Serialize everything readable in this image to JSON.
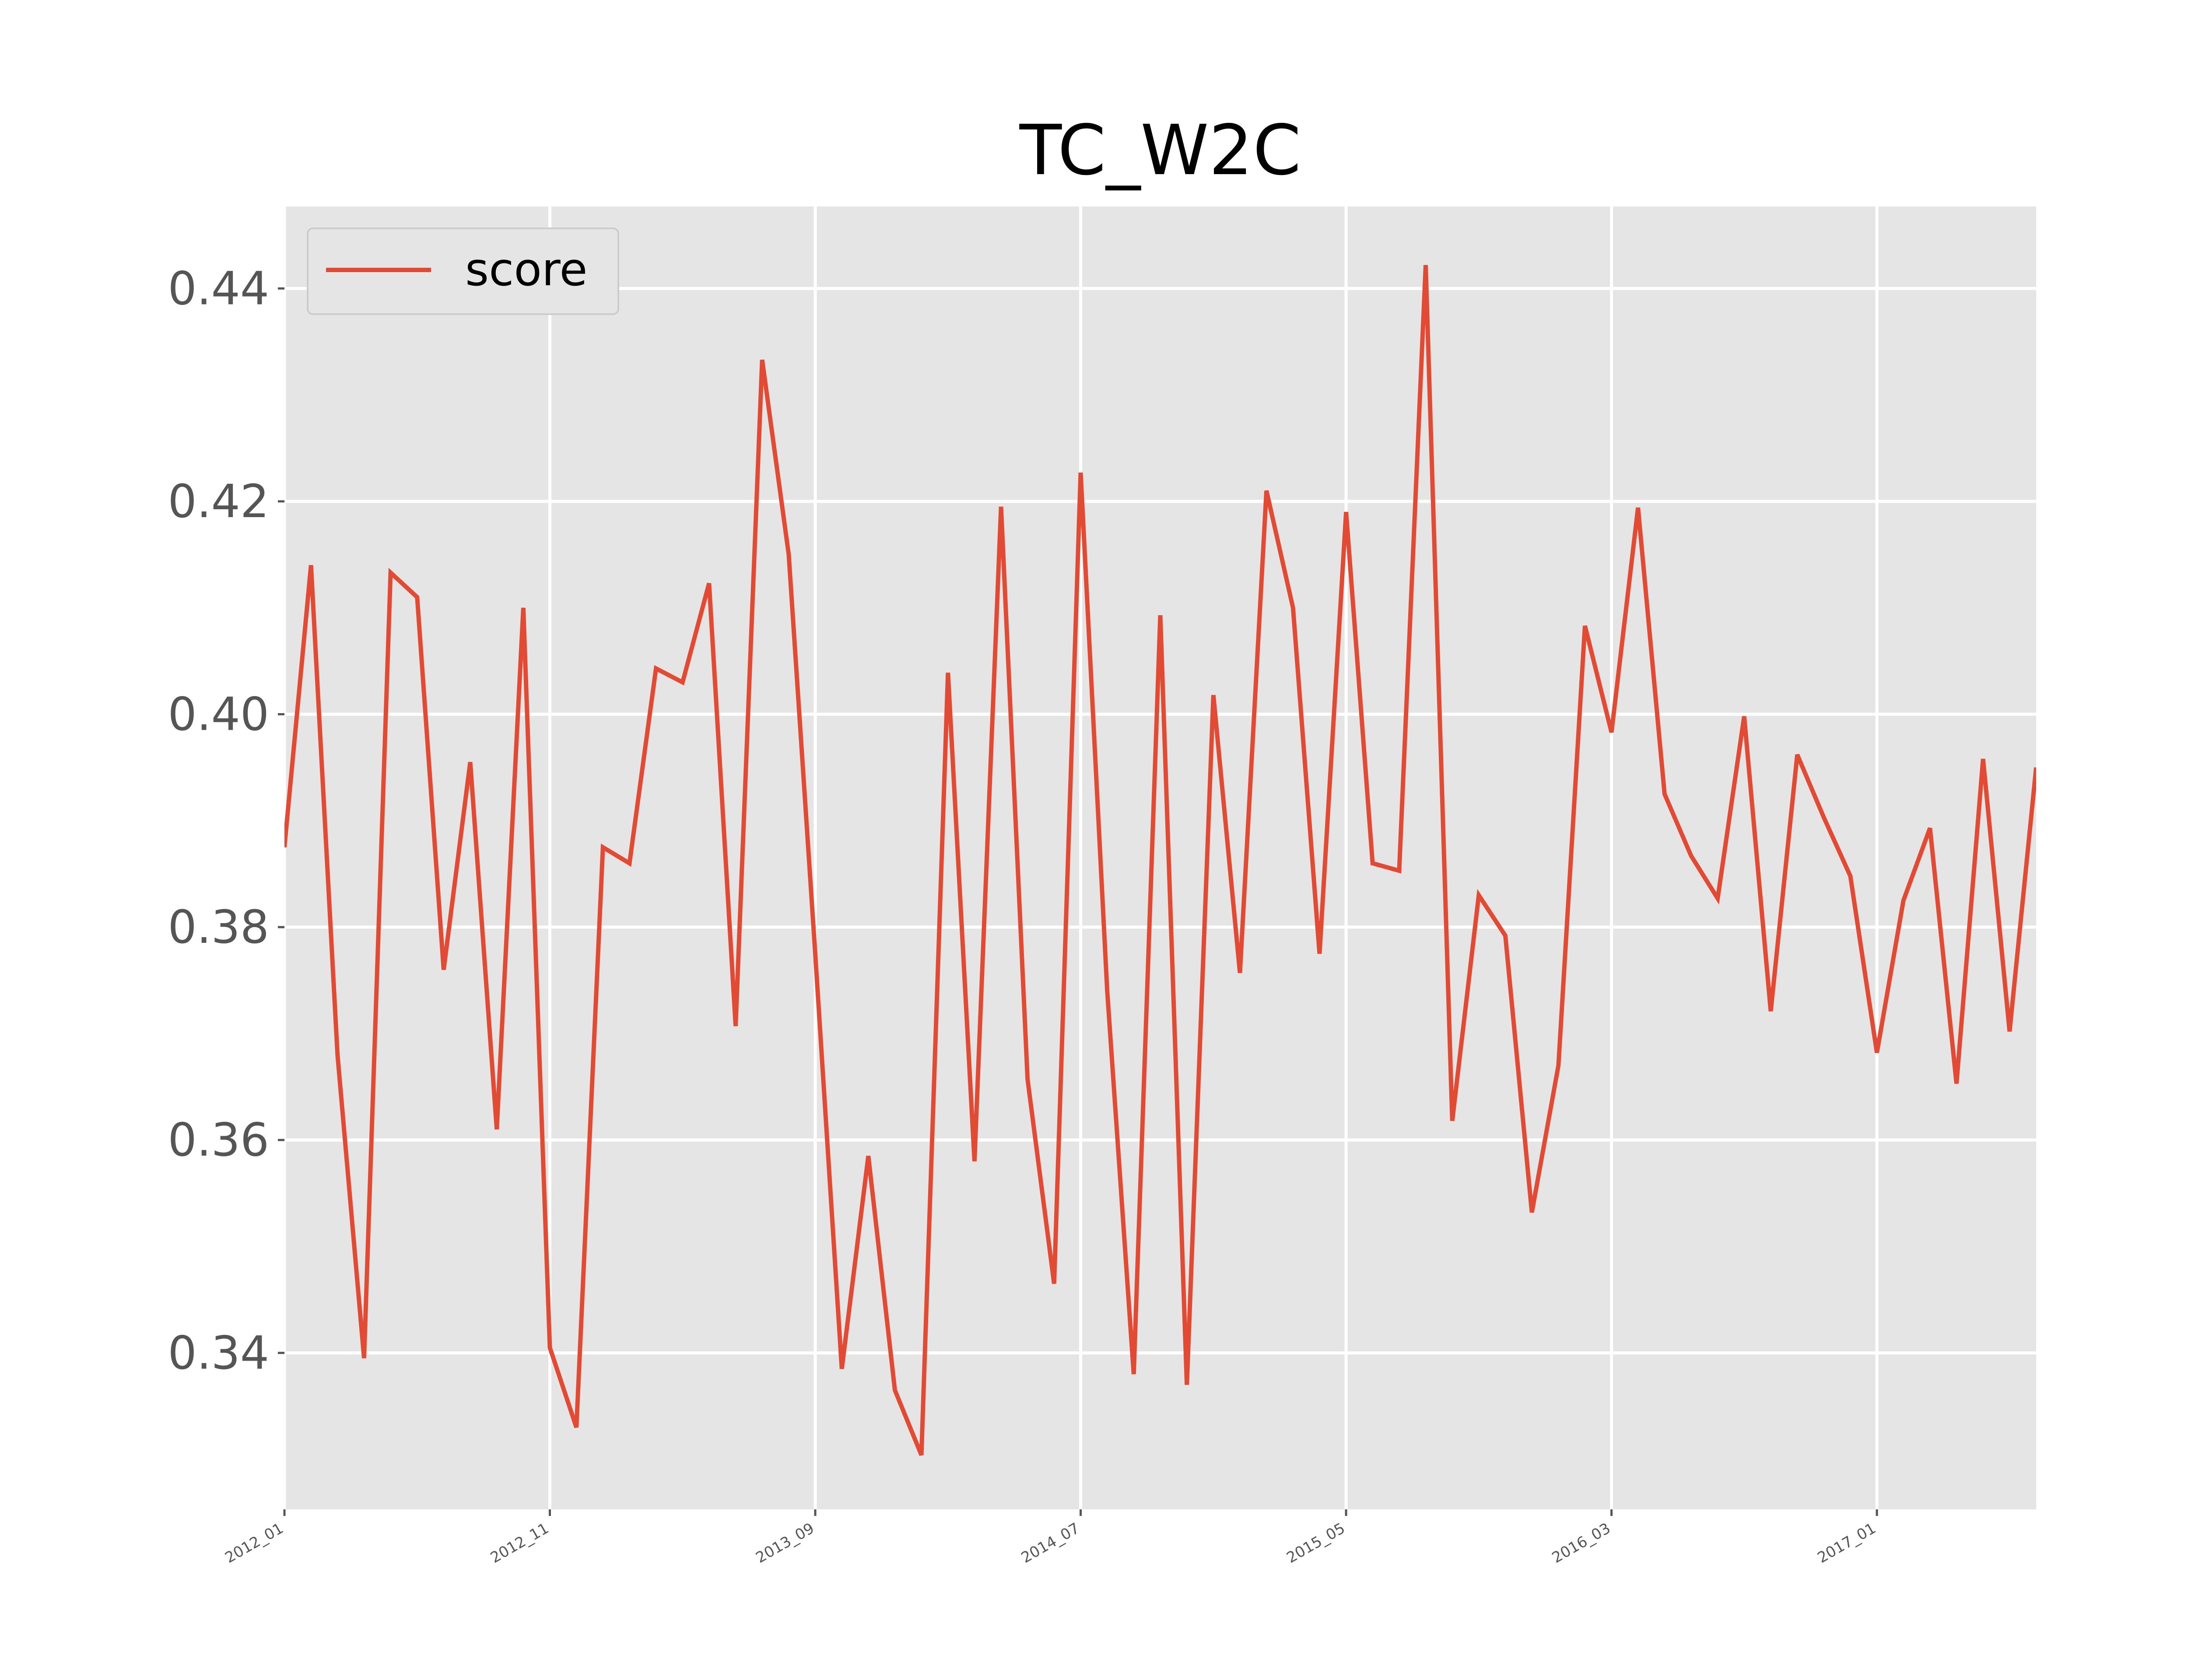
{
  "chart_data": {
    "type": "line",
    "title": "TC_W2C",
    "xlabel": "",
    "ylabel": "",
    "x_ticks": [
      "2012_01",
      "2012_11",
      "2013_09",
      "2014_07",
      "2015_05",
      "2016_03",
      "2017_01"
    ],
    "y_ticks": [
      "0.34",
      "0.36",
      "0.38",
      "0.40",
      "0.42",
      "0.44"
    ],
    "ylim": [
      0.3253,
      0.4477
    ],
    "grid": true,
    "legend": {
      "position": "top-left"
    },
    "series": [
      {
        "name": "score",
        "color": "#E24A33",
        "x": [
          "2012_01",
          "2012_02",
          "2012_03",
          "2012_04",
          "2012_05",
          "2012_06",
          "2012_07",
          "2012_08",
          "2012_09",
          "2012_10",
          "2012_11",
          "2012_12",
          "2013_01",
          "2013_02",
          "2013_03",
          "2013_04",
          "2013_05",
          "2013_06",
          "2013_07",
          "2013_08",
          "2013_09",
          "2013_10",
          "2013_11",
          "2013_12",
          "2014_01",
          "2014_02",
          "2014_03",
          "2014_04",
          "2014_05",
          "2014_06",
          "2014_07",
          "2014_08",
          "2014_09",
          "2014_10",
          "2014_11",
          "2014_12",
          "2015_01",
          "2015_02",
          "2015_03",
          "2015_04",
          "2015_05",
          "2015_06",
          "2015_07",
          "2015_08",
          "2015_09",
          "2015_10",
          "2015_11",
          "2015_12",
          "2016_01",
          "2016_02",
          "2016_03",
          "2016_04",
          "2016_05",
          "2016_06",
          "2016_07",
          "2016_08",
          "2016_09",
          "2016_10",
          "2016_11",
          "2016_12",
          "2017_01",
          "2017_02",
          "2017_03",
          "2017_04",
          "2017_05",
          "2017_06",
          "2017_07"
        ],
        "values": [
          0.3875,
          0.414,
          0.368,
          0.3395,
          0.4133,
          0.411,
          0.376,
          0.3955,
          0.361,
          0.41,
          0.3405,
          0.333,
          0.3875,
          0.386,
          0.4043,
          0.403,
          0.4123,
          0.3707,
          0.4333,
          0.415,
          0.3775,
          0.3385,
          0.3585,
          0.3365,
          0.3304,
          0.4039,
          0.358,
          0.4195,
          0.3657,
          0.3465,
          0.4227,
          0.374,
          0.338,
          0.4093,
          0.337,
          0.4018,
          0.3757,
          0.421,
          0.41,
          0.3775,
          0.419,
          0.386,
          0.3853,
          0.4422,
          0.3618,
          0.383,
          0.3792,
          0.3532,
          0.367,
          0.4083,
          0.3983,
          0.4194,
          0.3925,
          0.3867,
          0.3827,
          0.3998,
          0.3721,
          0.3962,
          0.3903,
          0.3848,
          0.3682,
          0.3825,
          0.3893,
          0.3653,
          0.3958,
          0.3702,
          0.395
        ]
      }
    ]
  }
}
